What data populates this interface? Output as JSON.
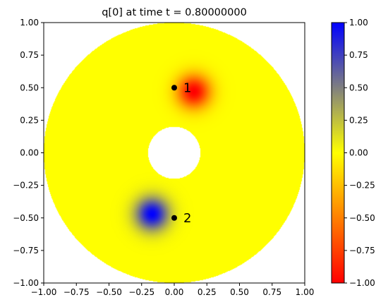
{
  "chart_data": {
    "type": "heatmap",
    "title": "q[0] at time t =     0.80000000",
    "xlabel": "",
    "ylabel": "",
    "xlim": [
      -1.0,
      1.0
    ],
    "ylim": [
      -1.0,
      1.0
    ],
    "xticks": [
      "−1.00",
      "−0.75",
      "−0.50",
      "−0.25",
      "0.00",
      "0.25",
      "0.50",
      "0.75",
      "1.00"
    ],
    "yticks": [
      "−1.00",
      "−0.75",
      "−0.50",
      "−0.25",
      "0.00",
      "0.25",
      "0.50",
      "0.75",
      "1.00"
    ],
    "domain": {
      "shape": "annulus",
      "inner_radius": 0.2,
      "outer_radius": 1.0
    },
    "field_blobs": [
      {
        "center": [
          0.15,
          0.47
        ],
        "amplitude": -1.0,
        "width": 0.09
      },
      {
        "center": [
          -0.17,
          -0.47
        ],
        "amplitude": 1.0,
        "width": 0.09
      }
    ],
    "gauges": [
      {
        "label": "1",
        "x": 0.0,
        "y": 0.5
      },
      {
        "label": "2",
        "x": 0.0,
        "y": -0.5
      }
    ],
    "colorbar": {
      "vmin": -1.0,
      "vmax": 1.0,
      "ticks": [
        "1.00",
        "0.75",
        "0.50",
        "0.25",
        "0.00",
        "−0.25",
        "−0.50",
        "−0.75",
        "−1.00"
      ],
      "colors": {
        "min": "#ff0000",
        "mid": "#ffff00",
        "max": "#0000ff"
      }
    },
    "background_color": "#ffffff"
  }
}
